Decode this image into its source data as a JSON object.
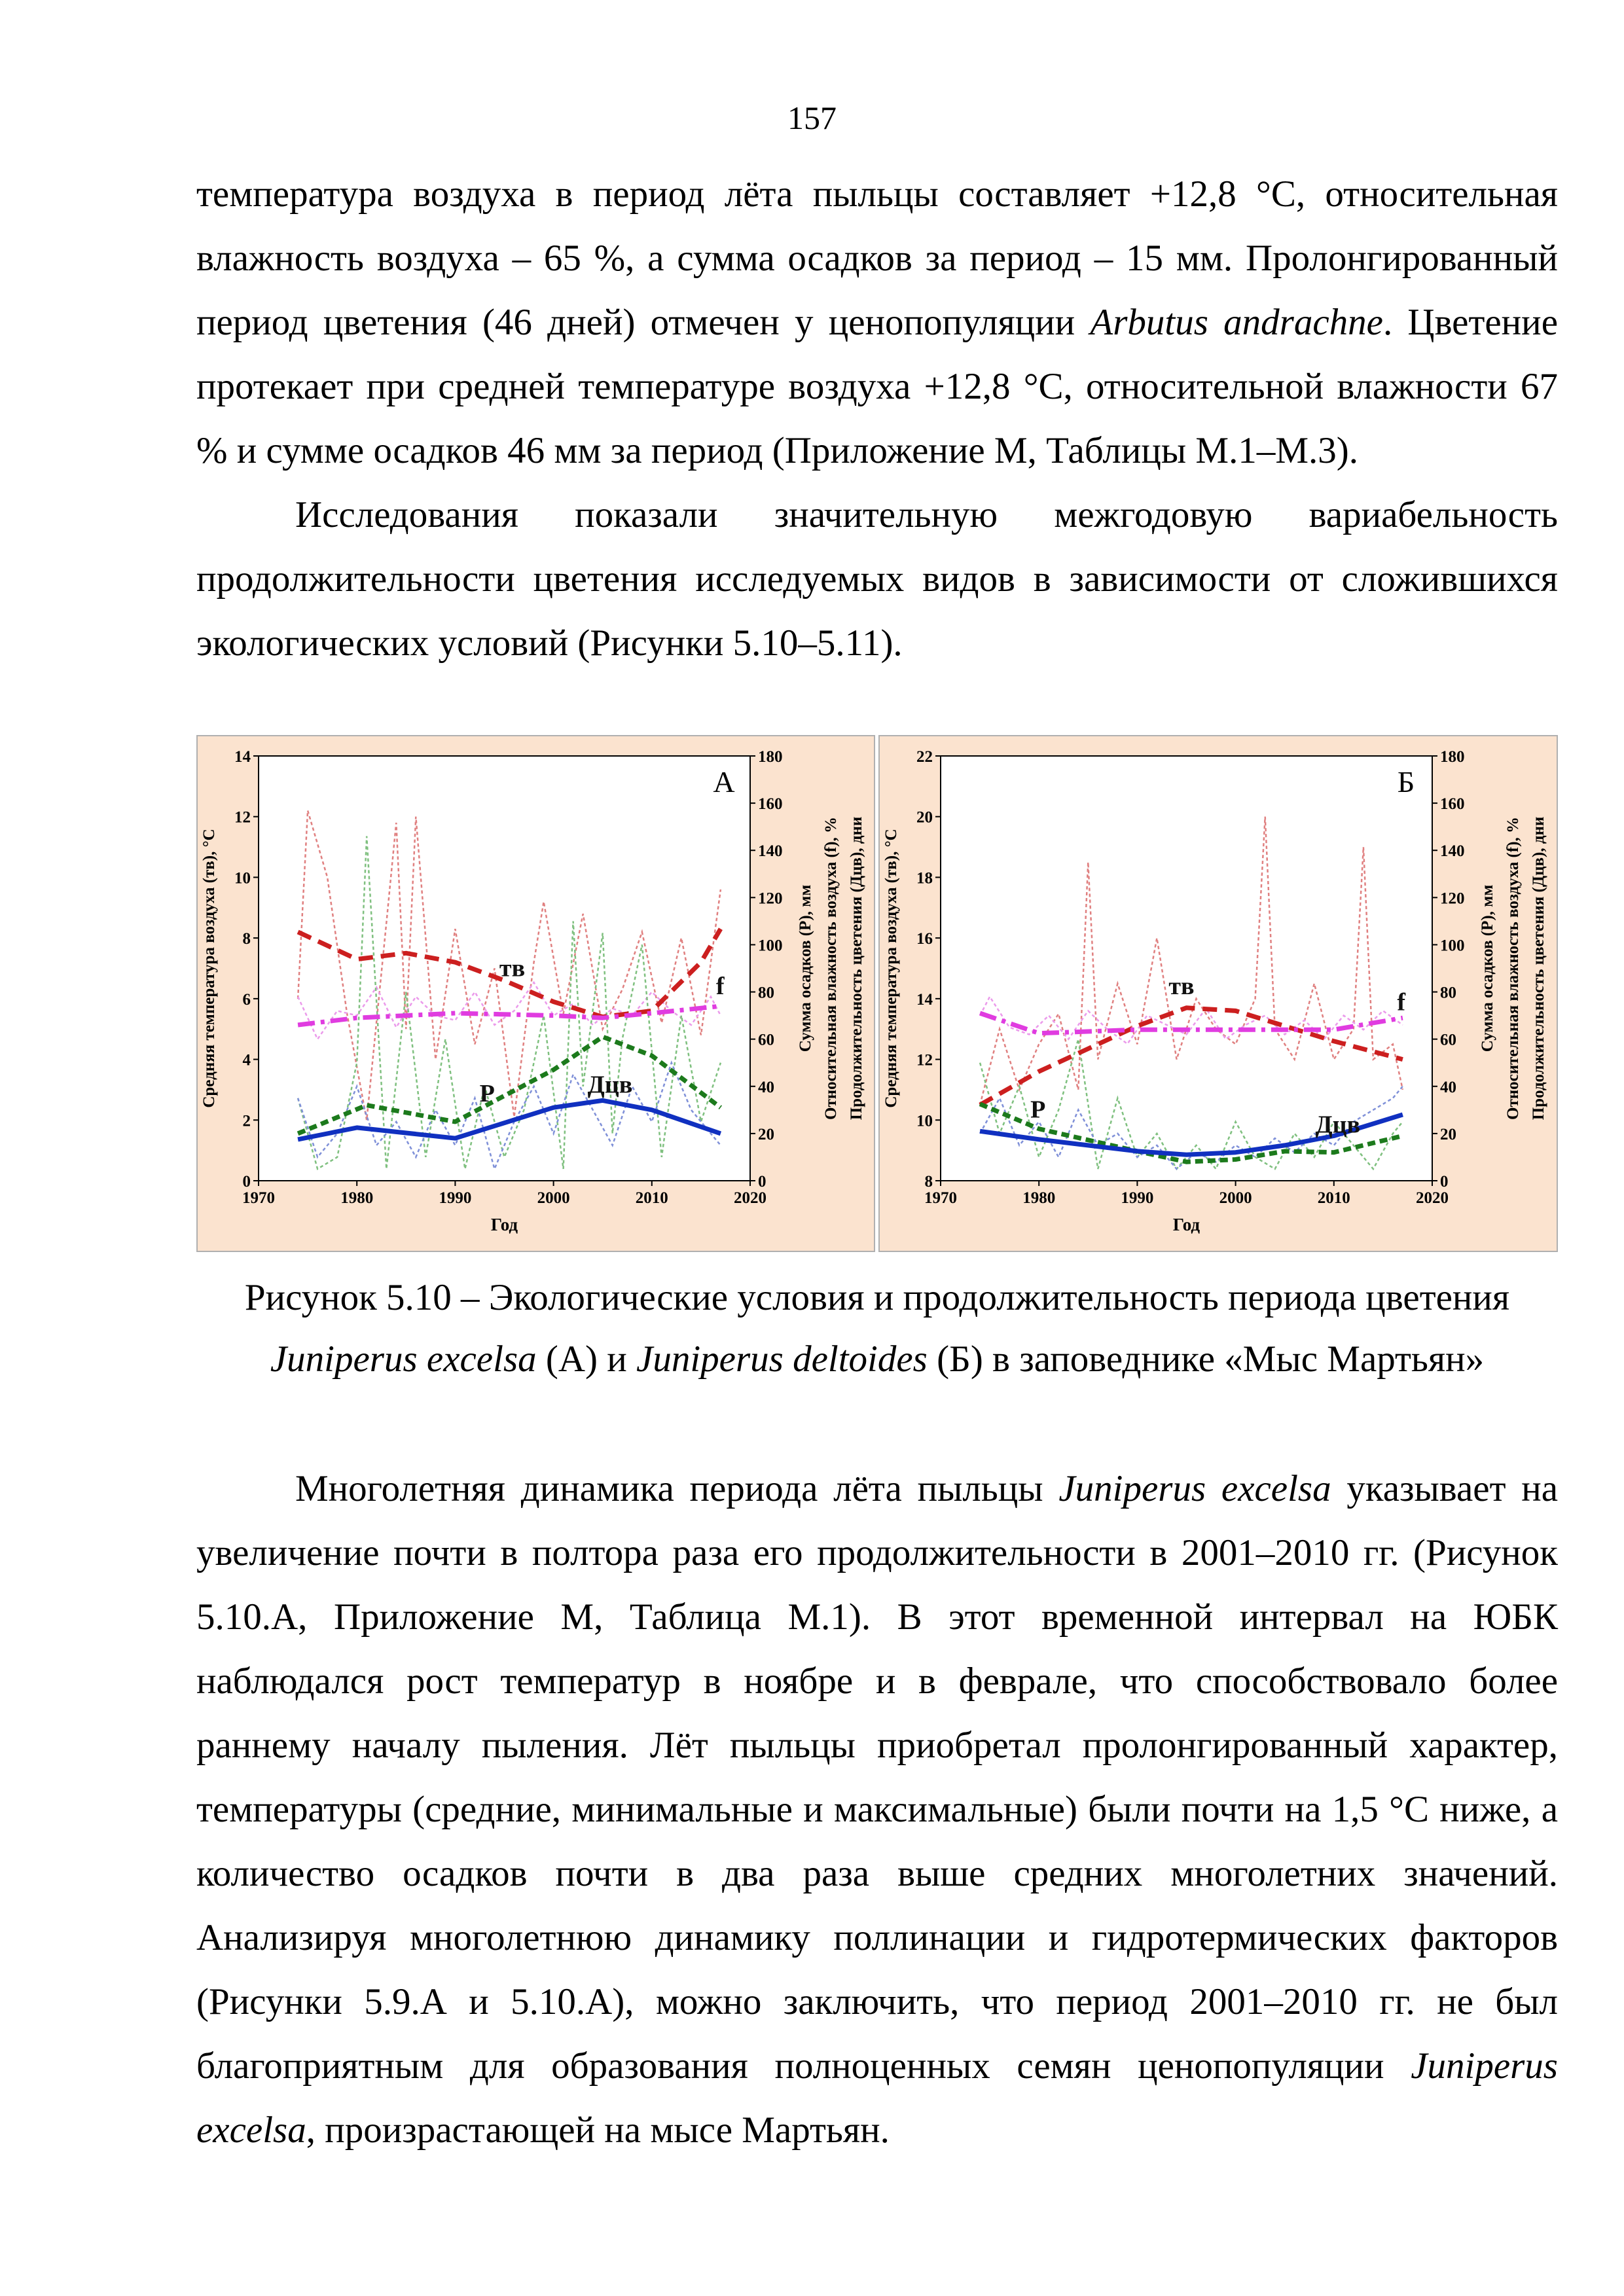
{
  "page_number": "157",
  "paragraphs": [
    [
      "температура воздуха в период лёта пыльцы составляет +12,8 °С, относительная влажность воздуха – 65 %, а сумма осадков за период – 15 мм. Пролонгированный период цветения (46 дней) отмечен у ценопопуляции ",
      "Arbutus andrachne",
      ". Цветение протекает при средней температуре воздуха +12,8 °С, относительной влажности 67 % и сумме осадков 46 мм за период (Приложение М, Таблицы М.1–М.3)."
    ],
    [
      "Исследования показали значительную межгодовую вариабельность продолжительности цветения исследуемых видов в зависимости от сложившихся экологических условий (Рисунки 5.10–5.11)."
    ],
    [
      "Многолетняя динамика периода лёта пыльцы ",
      "Juniperus excelsa",
      " указывает на увеличение почти в полтора раза его продолжительности в 2001–2010 гг. (Рисунок 5.10.А, Приложение М, Таблица М.1). В этот временной интервал на ЮБК наблюдался рост температур в ноябре и в феврале, что способствовало более раннему началу пыления. Лёт пыльцы приобретал пролонгированный характер, температуры (средние, минимальные и максимальные) были почти на 1,5 °С ниже, а количество осадков почти в два раза выше средних многолетних значений. Анализируя многолетнюю динамику поллинации и гидротермических факторов (Рисунки 5.9.А и 5.10.А), можно заключить, что период 2001–2010 гг. не был благоприятным для образования полноценных семян ценопопуляции ",
      "Juniperus excelsa",
      ", произрастающей на мысе Мартьян."
    ]
  ],
  "caption": [
    "Рисунок 5.10 – Экологические условия и продолжительность периода цветения ",
    "Juniperus excelsa",
    " (А) и ",
    "Juniperus deltoides",
    " (Б) в заповеднике «Мыс Мартьян»"
  ],
  "chart_data": [
    {
      "type": "line",
      "panel_label": "А",
      "xlabel": "Год",
      "ylabel": "Средняя температура воздуха (тв), °С",
      "y2labels": [
        "Сумма осадков (P), мм",
        "Относительная влажность воздуха (f), %",
        "Продолжительность цветения (Дцв), дни"
      ],
      "xlim": [
        1970,
        2020
      ],
      "xticks": [
        1970,
        1980,
        1990,
        2000,
        2010,
        2020
      ],
      "ylim": [
        0,
        14
      ],
      "yticks": [
        0,
        2,
        4,
        6,
        8,
        10,
        12,
        14
      ],
      "y2lim": [
        0,
        180
      ],
      "y2ticks": [
        0,
        20,
        40,
        60,
        80,
        100,
        120,
        140,
        160,
        180
      ],
      "series": [
        {
          "name": "тв",
          "axis": "y",
          "color": "#cc1f1f",
          "raw_color": "#e08080",
          "line_style": "dashed",
          "x": [
            1974,
            1975,
            1977,
            1979,
            1981,
            1983,
            1984,
            1985,
            1986,
            1988,
            1990,
            1992,
            1994,
            1996,
            1998,
            1999,
            2001,
            2003,
            2005,
            2007,
            2009,
            2011,
            2013,
            2015,
            2017
          ],
          "values": [
            6,
            12.2,
            10,
            5.5,
            2,
            8.5,
            11.8,
            5,
            12,
            4,
            8.3,
            4.5,
            7,
            2.1,
            7.2,
            9.2,
            5.5,
            8.8,
            5,
            6.3,
            8.2,
            5.2,
            8,
            4.8,
            9.6
          ],
          "trend_x": [
            1974,
            1980,
            1985,
            1990,
            1995,
            2000,
            2005,
            2010,
            2015,
            2017
          ],
          "trend_values": [
            8.2,
            7.3,
            7.5,
            7.2,
            6.6,
            5.9,
            5.4,
            5.6,
            7.2,
            8.3
          ]
        },
        {
          "name": "f",
          "axis": "y2",
          "color": "#e03ce0",
          "raw_color": "#eb9aeb",
          "line_style": "dashdot",
          "x": [
            1974,
            1976,
            1978,
            1980,
            1982,
            1984,
            1986,
            1988,
            1990,
            1992,
            1994,
            1996,
            1998,
            2000,
            2002,
            2004,
            2006,
            2008,
            2010,
            2012,
            2014,
            2016,
            2017
          ],
          "values": [
            78,
            60,
            72,
            70,
            82,
            65,
            78,
            70,
            68,
            80,
            66,
            72,
            84,
            70,
            75,
            66,
            73,
            70,
            80,
            72,
            66,
            78,
            70
          ],
          "trend_x": [
            1974,
            1980,
            1990,
            2000,
            2005,
            2010,
            2017
          ],
          "trend_values": [
            66,
            69,
            71,
            70,
            69,
            71,
            74
          ]
        },
        {
          "name": "P",
          "axis": "y2",
          "color": "#1c7a1c",
          "raw_color": "#7fc07f",
          "line_style": "dotted",
          "x": [
            1974,
            1976,
            1978,
            1980,
            1981,
            1983,
            1985,
            1987,
            1989,
            1991,
            1993,
            1995,
            1997,
            1999,
            2001,
            2002,
            2003,
            2005,
            2006,
            2007,
            2009,
            2011,
            2013,
            2015,
            2017
          ],
          "values": [
            35,
            5,
            10,
            50,
            146,
            5,
            80,
            10,
            60,
            5,
            40,
            10,
            30,
            70,
            5,
            110,
            40,
            105,
            20,
            60,
            100,
            10,
            70,
            25,
            50
          ],
          "trend_x": [
            1974,
            1981,
            1990,
            2000,
            2005,
            2010,
            2017
          ],
          "trend_values": [
            20,
            32,
            25,
            47,
            61,
            53,
            31
          ]
        },
        {
          "name": "Дцв",
          "axis": "y2",
          "color": "#1030c0",
          "raw_color": "#7f90d8",
          "line_style": "solid",
          "x": [
            1974,
            1976,
            1978,
            1980,
            1982,
            1984,
            1986,
            1988,
            1990,
            1992,
            1994,
            1996,
            1998,
            2000,
            2002,
            2004,
            2006,
            2008,
            2010,
            2012,
            2014,
            2016,
            2017
          ],
          "values": [
            35,
            10,
            20,
            40,
            15,
            25,
            10,
            30,
            15,
            35,
            5,
            25,
            40,
            20,
            45,
            30,
            15,
            40,
            25,
            50,
            30,
            20,
            15
          ],
          "trend_x": [
            1974,
            1980,
            1990,
            2000,
            2005,
            2010,
            2017
          ],
          "trend_values": [
            17.5,
            22.5,
            18,
            31,
            34,
            30,
            20
          ]
        }
      ]
    },
    {
      "type": "line",
      "panel_label": "Б",
      "xlabel": "Год",
      "ylabel": "Средняя температура воздуха (тв), °С",
      "y2labels": [
        "Сумма осадков (P), мм",
        "Относительная влажность воздуха (f), %",
        "Продолжительность цветения (Дцв), дни"
      ],
      "xlim": [
        1970,
        2020
      ],
      "xticks": [
        1970,
        1980,
        1990,
        2000,
        2010,
        2020
      ],
      "ylim": [
        8,
        22
      ],
      "yticks": [
        8,
        10,
        12,
        14,
        16,
        18,
        20,
        22
      ],
      "y2lim": [
        0,
        180
      ],
      "y2ticks": [
        0,
        20,
        40,
        60,
        80,
        100,
        120,
        140,
        160,
        180
      ],
      "series": [
        {
          "name": "тв",
          "axis": "y",
          "color": "#cc1f1f",
          "raw_color": "#e08080",
          "line_style": "dashed",
          "x": [
            1974,
            1976,
            1978,
            1980,
            1982,
            1984,
            1985,
            1986,
            1988,
            1990,
            1992,
            1994,
            1996,
            1998,
            2000,
            2002,
            2003,
            2004,
            2006,
            2008,
            2010,
            2012,
            2013,
            2014,
            2016,
            2017
          ],
          "values": [
            10.5,
            13,
            11,
            12.5,
            13.5,
            11,
            18.5,
            12,
            14.5,
            12.5,
            16,
            12,
            14,
            13,
            12.5,
            14,
            20,
            13,
            12,
            14.5,
            12,
            13,
            19,
            12,
            12.5,
            11
          ],
          "trend_x": [
            1974,
            1980,
            1990,
            1995,
            2000,
            2005,
            2010,
            2017
          ],
          "trend_values": [
            10.5,
            11.6,
            13.1,
            13.7,
            13.6,
            13.1,
            12.6,
            12
          ]
        },
        {
          "name": "f",
          "axis": "y2",
          "color": "#e03ce0",
          "raw_color": "#eb9aeb",
          "line_style": "dashdot",
          "x": [
            1974,
            1975,
            1977,
            1979,
            1981,
            1983,
            1985,
            1987,
            1989,
            1991,
            1993,
            1995,
            1997,
            1999,
            2001,
            2003,
            2005,
            2007,
            2009,
            2011,
            2013,
            2015,
            2017
          ],
          "values": [
            70,
            78,
            65,
            62,
            70,
            60,
            72,
            64,
            58,
            70,
            66,
            62,
            73,
            60,
            66,
            70,
            62,
            68,
            60,
            70,
            64,
            72,
            66
          ],
          "trend_x": [
            1974,
            1980,
            1990,
            2000,
            2010,
            2017
          ],
          "trend_values": [
            71,
            62.5,
            64,
            64,
            64,
            69
          ]
        },
        {
          "name": "P",
          "axis": "y2",
          "color": "#1c7a1c",
          "raw_color": "#7fc07f",
          "line_style": "dotted",
          "x": [
            1974,
            1976,
            1978,
            1980,
            1982,
            1984,
            1986,
            1988,
            1990,
            1992,
            1994,
            1996,
            1998,
            2000,
            2002,
            2004,
            2006,
            2008,
            2010,
            2012,
            2014,
            2016,
            2017
          ],
          "values": [
            50,
            20,
            40,
            10,
            30,
            60,
            5,
            35,
            10,
            20,
            5,
            15,
            5,
            25,
            10,
            5,
            20,
            10,
            25,
            15,
            5,
            20,
            25
          ],
          "trend_x": [
            1974,
            1980,
            1990,
            1995,
            2000,
            2005,
            2010,
            2017
          ],
          "trend_values": [
            32.5,
            22,
            12.5,
            8,
            9,
            12.5,
            12,
            19
          ]
        },
        {
          "name": "Дцв",
          "axis": "y2",
          "color": "#1030c0",
          "raw_color": "#7f90d8",
          "line_style": "solid",
          "x": [
            1974,
            1976,
            1978,
            1980,
            1982,
            1984,
            1986,
            1988,
            1990,
            1992,
            1994,
            1996,
            1998,
            2000,
            2002,
            2004,
            2006,
            2008,
            2010,
            2012,
            2014,
            2016,
            2017
          ],
          "values": [
            20,
            35,
            15,
            25,
            10,
            30,
            15,
            20,
            10,
            15,
            5,
            12,
            8,
            15,
            10,
            18,
            12,
            20,
            15,
            25,
            30,
            35,
            40
          ],
          "trend_x": [
            1974,
            1980,
            1990,
            1995,
            2000,
            2005,
            2010,
            2017
          ],
          "trend_values": [
            21,
            17.5,
            12.5,
            11,
            12,
            15,
            19,
            28
          ]
        }
      ]
    }
  ]
}
